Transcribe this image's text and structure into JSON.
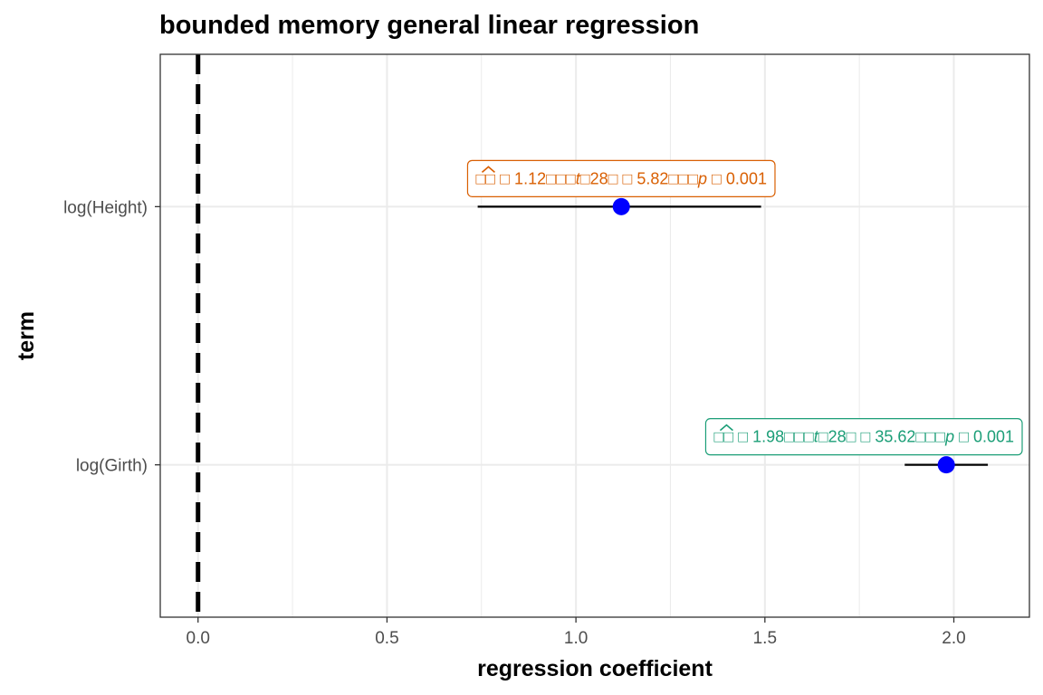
{
  "chart_data": {
    "type": "scatter",
    "title": "bounded memory general linear regression",
    "xlabel": "regression coefficient",
    "ylabel": "term",
    "xlim": [
      -0.1,
      2.2
    ],
    "x_ticks": [
      0.0,
      0.5,
      1.0,
      1.5,
      2.0
    ],
    "x_tick_labels": [
      "0.0",
      "0.5",
      "1.0",
      "1.5",
      "2.0"
    ],
    "categories": [
      "log(Height)",
      "log(Girth)"
    ],
    "reference_line": {
      "x": 0,
      "style": "dashed",
      "color": "#000000"
    },
    "grid": true,
    "legend": "none",
    "point_color": "#0000ff",
    "series": [
      {
        "term": "log(Height)",
        "estimate": 1.12,
        "conf_low": 0.74,
        "conf_high": 1.49,
        "label_color": "#d95f02",
        "label": {
          "beta_prefix": "β̂",
          "estimate": "1.12",
          "t_df": "28",
          "t_value": "5.82",
          "p_text": "0.001"
        }
      },
      {
        "term": "log(Girth)",
        "estimate": 1.98,
        "conf_low": 1.87,
        "conf_high": 2.09,
        "label_color": "#1b9e77",
        "label": {
          "beta_prefix": "β̂",
          "estimate": "1.98",
          "t_df": "28",
          "t_value": "35.62",
          "p_text": "0.001"
        }
      }
    ]
  }
}
